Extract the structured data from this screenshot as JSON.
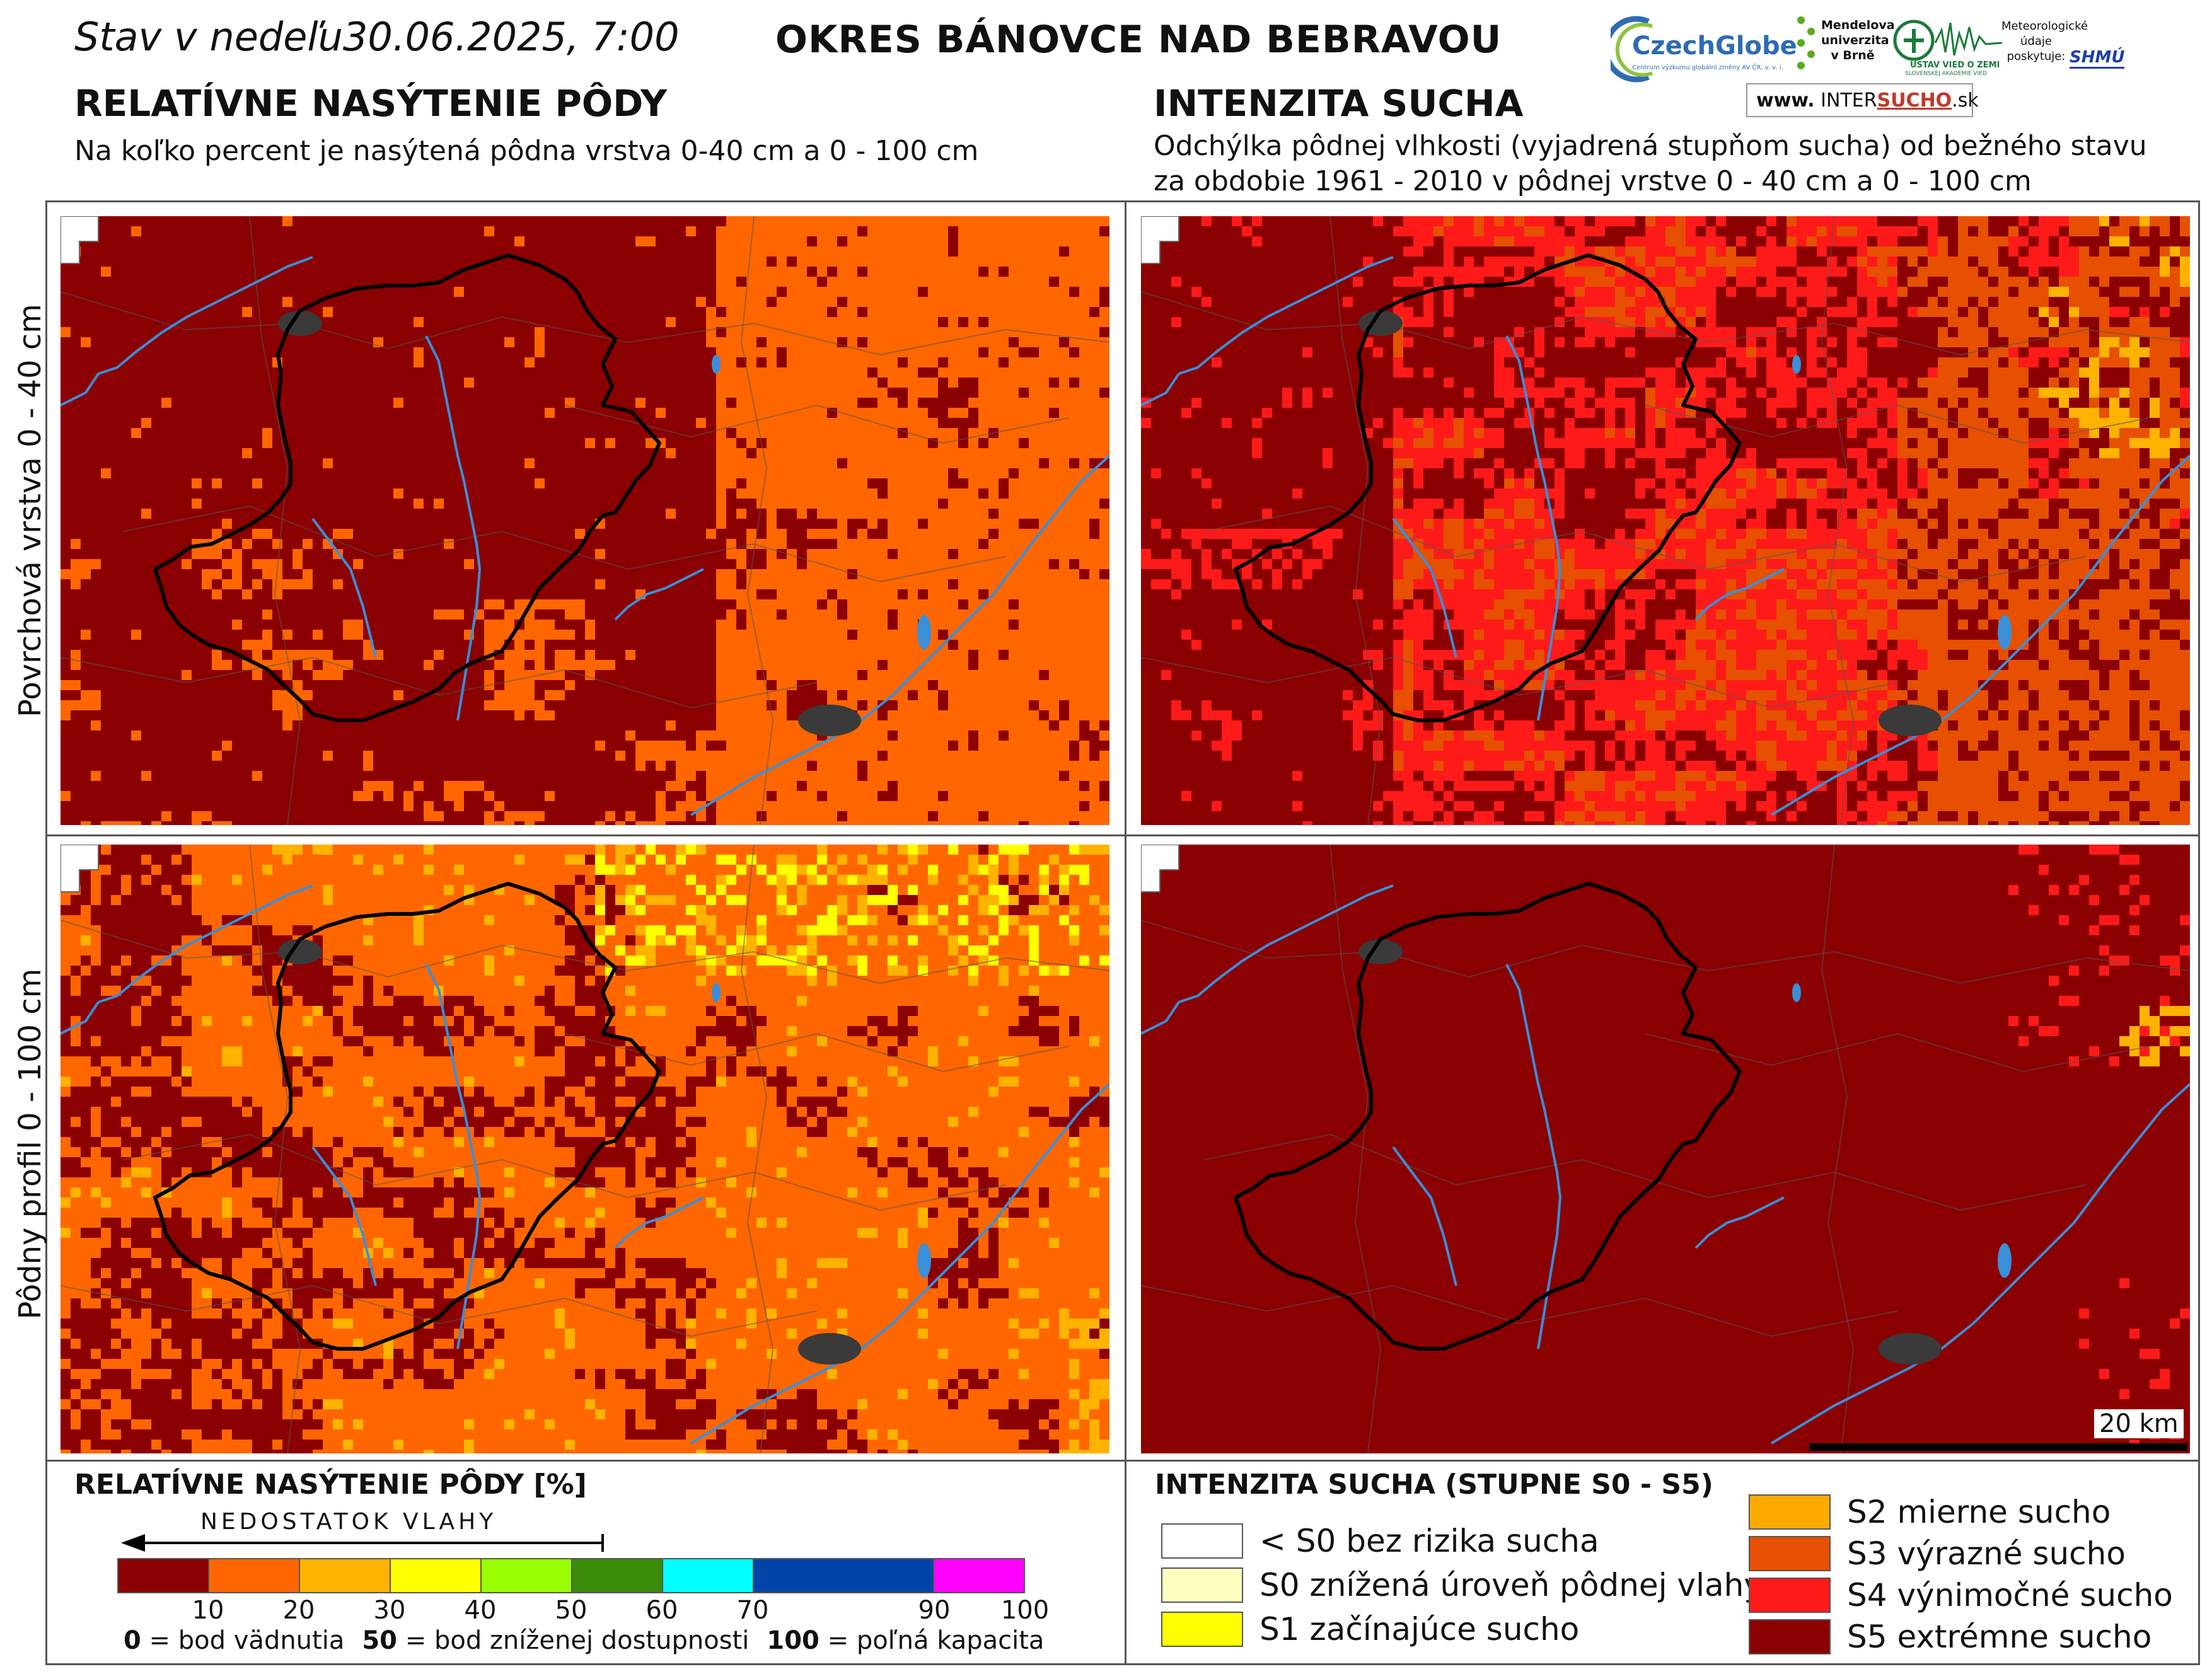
{
  "header": {
    "date_prefix": "Stav  v  nedeľu",
    "date_value": "30.06.2025, 7:00",
    "district": "OKRES  BÁNOVCE NAD BEBRAVOU"
  },
  "logos": {
    "czechglobe": "CzechGlobe",
    "czechglobe_sub": "Centrum výzkumu globální změny AV ČR, v. v. i.",
    "mendel": "Mendelova univerzita v Brně",
    "ustav": "ÚSTAV VIED O ZEMI",
    "ustav_sub": "SLOVENSKEJ AKADÉMIE VIED",
    "meteo_note": "Meteorologické údaje poskytuje:",
    "shmu": "SHMÚ",
    "intersucho_www": "www.",
    "intersucho_a": "INTER",
    "intersucho_b": "SUCHO",
    "intersucho_c": ".sk"
  },
  "left_section": {
    "title": "RELATÍVNE NASÝTENIE PÔDY",
    "subtitle": "Na koľko percent je nasýtená pôdna vrstva 0-40 cm a 0 - 100 cm"
  },
  "right_section": {
    "title": "INTENZITA SUCHA",
    "subtitle_1": "Odchýlka pôdnej vlhkosti (vyjadrená stupňom sucha) od bežného stavu",
    "subtitle_2": "za obdobie 1961 - 2010 v pôdnej vrstve 0 - 40 cm a 0 - 100 cm"
  },
  "row_labels": {
    "top": "Povrchová vrstva 0 - 40 cm",
    "bottom": "Pôdny profil 0 - 100 cm"
  },
  "scale_bar": "20 km",
  "legend_left": {
    "title": "RELATÍVNE NASÝTENIE PÔDY [%]",
    "arrow_label": "NEDOSTATOK  VLAHY",
    "bins": [
      {
        "from": 0,
        "to": 10,
        "color": "#8b0000"
      },
      {
        "from": 10,
        "to": 20,
        "color": "#ff6600"
      },
      {
        "from": 20,
        "to": 30,
        "color": "#ffb300"
      },
      {
        "from": 30,
        "to": 40,
        "color": "#ffff00"
      },
      {
        "from": 40,
        "to": 50,
        "color": "#99ff00"
      },
      {
        "from": 50,
        "to": 60,
        "color": "#3a8c0a"
      },
      {
        "from": 60,
        "to": 70,
        "color": "#00ffff"
      },
      {
        "from": 70,
        "to": 90,
        "color": "#0044aa"
      },
      {
        "from": 90,
        "to": 100,
        "color": "#ff00ff"
      }
    ],
    "ticks": [
      "10",
      "20",
      "30",
      "40",
      "50",
      "60",
      "70",
      "90",
      "100"
    ],
    "notes": [
      {
        "bold": "0",
        "text": " = bod vädnutia"
      },
      {
        "bold": "50",
        "text": " = bod zníženej dostupnosti"
      },
      {
        "bold": "100",
        "text": " = poľná kapacita"
      }
    ]
  },
  "legend_right": {
    "title": "INTENZITA SUCHA (STUPNE S0 - S5)",
    "col1": [
      {
        "label": "< S0 bez rizika sucha",
        "color": "#ffffff"
      },
      {
        "label": "S0 znížená úroveň pôdnej vlahy",
        "color": "#ffffc0"
      },
      {
        "label": "S1 začínajúce sucho",
        "color": "#ffff00"
      }
    ],
    "col2": [
      {
        "label": "S2 mierne sucho",
        "color": "#ffaa00"
      },
      {
        "label": "S3 výrazné sucho",
        "color": "#e65000"
      },
      {
        "label": "S4 výnimočné sucho",
        "color": "#ff1a1a"
      },
      {
        "label": "S5 extrémne sucho",
        "color": "#8b0000"
      }
    ]
  },
  "map_colors": {
    "darkred": "#8b0000",
    "orange": "#ff6600",
    "amber": "#ffb300",
    "yellow": "#ffff00",
    "red": "#ff1a1a",
    "darkorange": "#e65000",
    "river": "#3a8fd9",
    "town": "#3a3a3a",
    "border": "#000000"
  }
}
